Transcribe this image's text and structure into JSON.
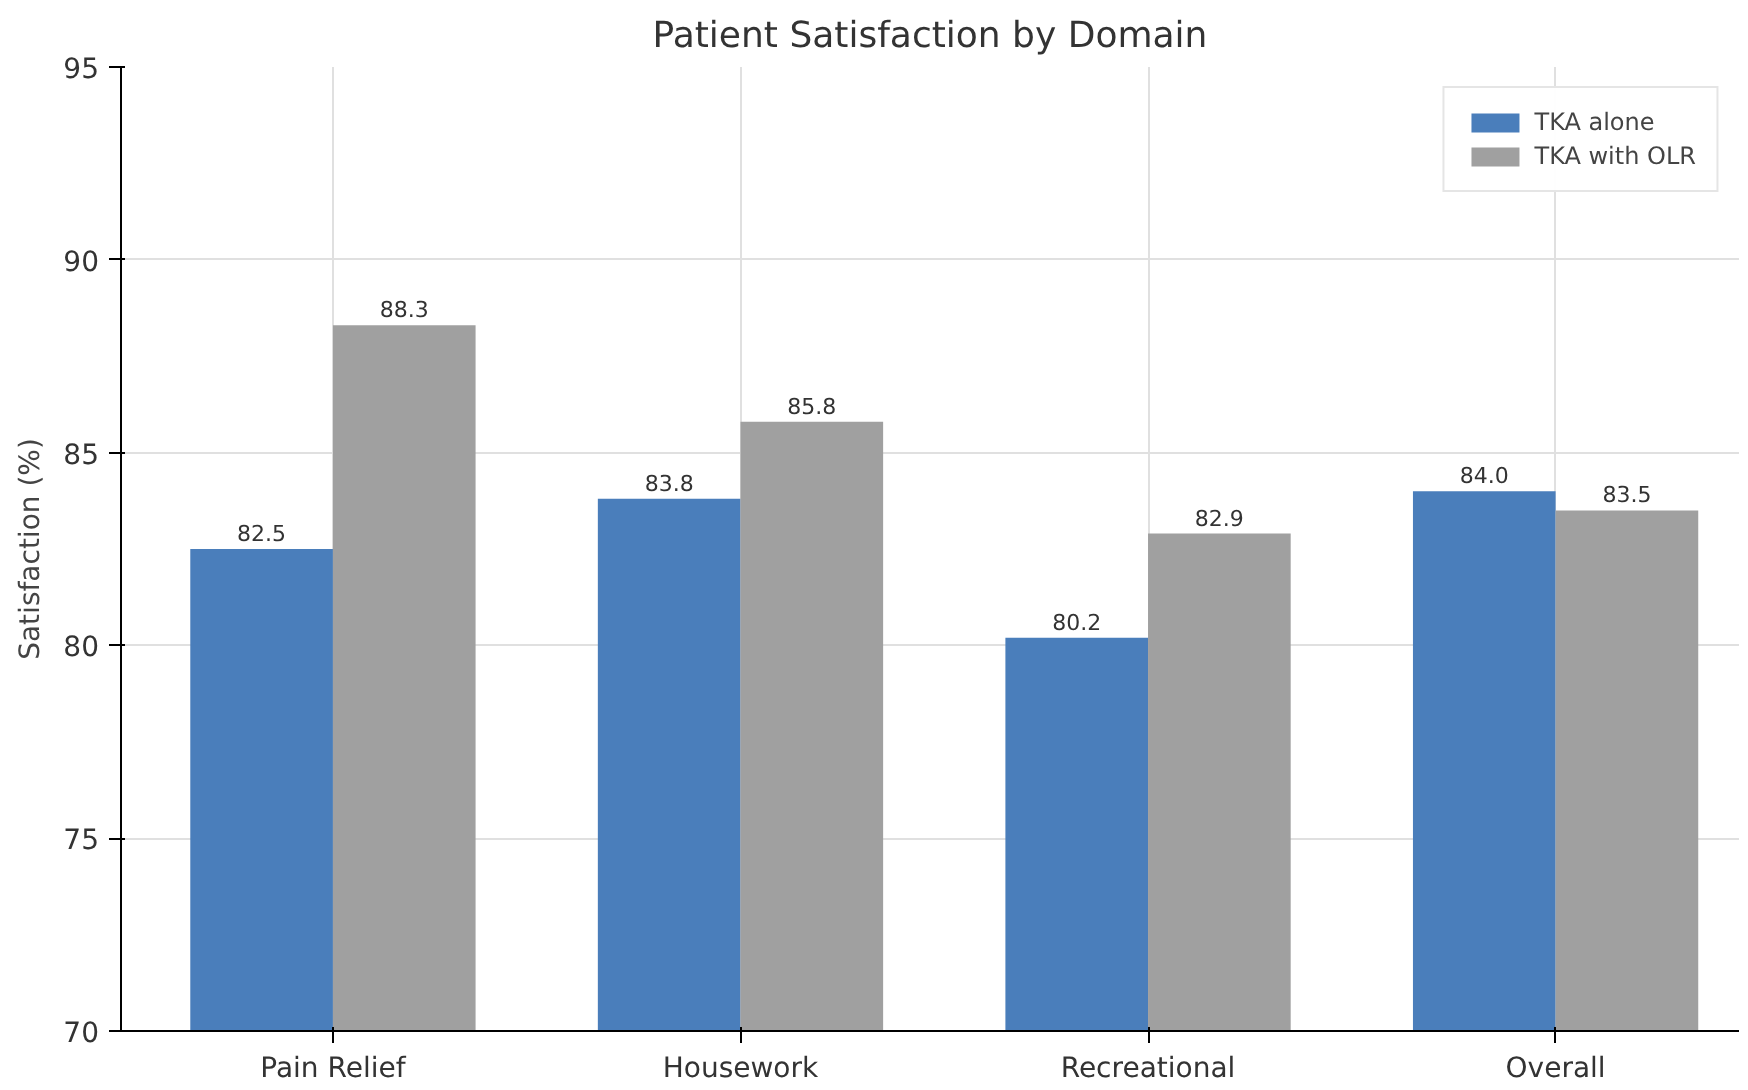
{
  "chart_data": {
    "type": "bar",
    "title": "Patient Satisfaction by Domain",
    "ylabel": "Satisfaction (%)",
    "categories": [
      "Pain Relief",
      "Housework",
      "Recreational",
      "Overall"
    ],
    "series": [
      {
        "name": "TKA alone",
        "color": "#4a7ebb",
        "values": [
          82.5,
          83.8,
          80.2,
          84.0
        ],
        "value_labels": [
          "82.5",
          "83.8",
          "80.2",
          "84.0"
        ]
      },
      {
        "name": "TKA with OLR",
        "color": "#a0a0a0",
        "values": [
          88.3,
          85.8,
          82.9,
          83.5
        ],
        "value_labels": [
          "88.3",
          "85.8",
          "82.9",
          "83.5"
        ]
      }
    ],
    "ylim": [
      70,
      95
    ],
    "yticks": [
      70,
      75,
      80,
      85,
      90,
      95
    ],
    "grid": true,
    "legend": "top right"
  }
}
